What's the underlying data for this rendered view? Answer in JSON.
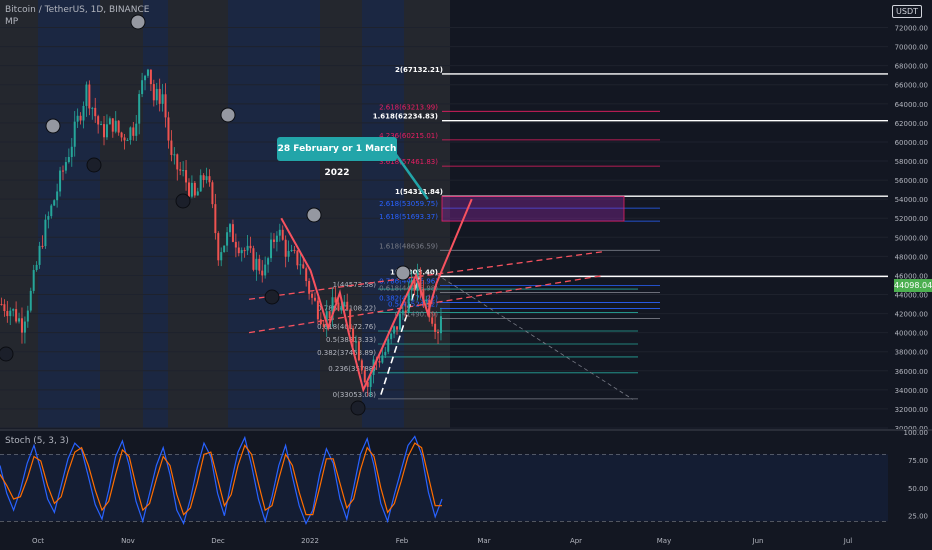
{
  "header": {
    "title": "Bitcoin / TetherUS, 1D, BINANCE",
    "subtitle": "MP",
    "currency": "USDT"
  },
  "callout": "28 February or 1 March 2022",
  "last_price": "44098.04",
  "colors": {
    "background": "#131722",
    "candle_up": "#26a69a",
    "candle_down": "#ef5350",
    "wave": "#f7525f",
    "stoch_k": "#2962ff",
    "stoch_d": "#ff6d00",
    "fib_up": "#2962ff",
    "fib_down": "#e91e63"
  },
  "chart_data": [
    {
      "type": "line",
      "name_label": "Bitcoin / TetherUS, 1D, BINANCE",
      "x_ticks": [
        "Oct",
        "Nov",
        "Dec",
        "2022",
        "Feb",
        "Mar",
        "Apr",
        "May",
        "Jun",
        "Jul"
      ],
      "y_ticks": [
        "30000.00",
        "32000.00",
        "34000.00",
        "36000.00",
        "38000.00",
        "40000.00",
        "42000.00",
        "44000.00",
        "46000.00",
        "48000.00",
        "50000.00",
        "52000.00",
        "54000.00",
        "56000.00",
        "58000.00",
        "60000.00",
        "62000.00",
        "64000.00",
        "66000.00",
        "68000.00",
        "70000.00",
        "72000.00"
      ],
      "ylim": [
        30000,
        73000
      ],
      "price_path": [
        [
          "Sep 21",
          43000
        ],
        [
          "Sep 24",
          42500
        ],
        [
          "Sep 28",
          41000
        ],
        [
          "Oct 1",
          44000
        ],
        [
          "Oct 5",
          50000
        ],
        [
          "Oct 10",
          55000
        ],
        [
          "Oct 15",
          60000
        ],
        [
          "Oct 20",
          65500
        ],
        [
          "Oct 25",
          61000
        ],
        [
          "Oct 29",
          62000
        ],
        [
          "Nov 1",
          60500
        ],
        [
          "Nov 5",
          61500
        ],
        [
          "Nov 8",
          66000
        ],
        [
          "Nov 10",
          68500
        ],
        [
          "Nov 12",
          64500
        ],
        [
          "Nov 15",
          65000
        ],
        [
          "Nov 18",
          58000
        ],
        [
          "Nov 22",
          56500
        ],
        [
          "Nov 26",
          54000
        ],
        [
          "Nov 30",
          57000
        ],
        [
          "Dec 4",
          48500
        ],
        [
          "Dec 8",
          50500
        ],
        [
          "Dec 12",
          49000
        ],
        [
          "Dec 16",
          47500
        ],
        [
          "Dec 20",
          46500
        ],
        [
          "Dec 24",
          51000
        ],
        [
          "Dec 28",
          48000
        ],
        [
          "Jan 1",
          47500
        ],
        [
          "Jan 5",
          43500
        ],
        [
          "Jan 9",
          41500
        ],
        [
          "Jan 13",
          43000
        ],
        [
          "Jan 17",
          42000
        ],
        [
          "Jan 21",
          38000
        ],
        [
          "Jan 24",
          34500
        ],
        [
          "Jan 26",
          36800
        ],
        [
          "Jan 30",
          38000
        ],
        [
          "Feb 4",
          41500
        ],
        [
          "Feb 7",
          44000
        ],
        [
          "Feb 10",
          45500
        ],
        [
          "Feb 14",
          42500
        ],
        [
          "Feb 17",
          40500
        ],
        [
          "Feb 19",
          44100
        ]
      ],
      "wave_path": [
        [
          "Dec 26",
          52000
        ],
        [
          "Jan 5",
          46500
        ],
        [
          "Jan 11",
          40500
        ],
        [
          "Jan 15",
          44200
        ],
        [
          "Jan 18",
          40000
        ],
        [
          "Jan 23",
          34000
        ],
        [
          "Feb 3",
          41500
        ],
        [
          "Feb 10",
          46000
        ],
        [
          "Feb 14",
          42000
        ],
        [
          "Feb 17",
          45200
        ],
        [
          "Mar 1",
          54000
        ]
      ],
      "channel_lines": [
        {
          "from": [
            "Dec 15",
            40000
          ],
          "to": [
            "Apr 15",
            46000
          ]
        },
        {
          "from": [
            "Dec 15",
            43500
          ],
          "to": [
            "Apr 15",
            48500
          ]
        }
      ],
      "fib_down": [
        {
          "label": "0(33053.08)",
          "price": 33053
        },
        {
          "label": "0.236(35788)",
          "price": 35788
        },
        {
          "label": "0.382(37453.89)",
          "price": 37454
        },
        {
          "label": "0.5(38813.33)",
          "price": 38813
        },
        {
          "label": "0.618(40172.76)",
          "price": 40173
        },
        {
          "label": "0.786(42108.22)",
          "price": 42108
        },
        {
          "label": "1(44573.58)",
          "price": 44574
        }
      ],
      "fib_up": [
        {
          "label": "0(41490.79)",
          "price": 41491
        },
        {
          "label": "0.5(42524.52)",
          "price": 42525
        },
        {
          "label": "0.382(43170.22)",
          "price": 43170
        },
        {
          "label": "0.618(44215.98)",
          "price": 44216
        },
        {
          "label": "0.786(44956.96)",
          "price": 44957
        },
        {
          "label": "1(45903.40)",
          "price": 45903
        },
        {
          "label": "1.618(48636.59)",
          "price": 48637
        },
        {
          "label": "1.618(51693.37)",
          "price": 51693
        },
        {
          "label": "2.618(53059.75)",
          "price": 53060
        },
        {
          "label": "1(54311.84)",
          "price": 54312
        },
        {
          "label": "3.618(57461.83)",
          "price": 57462
        },
        {
          "label": "4.236(60215.01)",
          "price": 60215
        },
        {
          "label": "1.618(62234.83)",
          "price": 62235
        },
        {
          "label": "2.618(63213.99)",
          "price": 63214
        },
        {
          "label": "2(67132.21)",
          "price": 67132
        }
      ]
    },
    {
      "type": "line",
      "title": "Stoch (5, 3, 3)",
      "y_ticks": [
        "25.00",
        "50.00",
        "75.00",
        "100.00"
      ],
      "ylim": [
        14,
        100
      ],
      "series": [
        {
          "key": "k",
          "values": [
            70,
            45,
            30,
            48,
            72,
            88,
            66,
            40,
            28,
            52,
            76,
            90,
            84,
            60,
            35,
            22,
            48,
            78,
            92,
            70,
            38,
            20,
            45,
            70,
            86,
            62,
            30,
            18,
            40,
            68,
            90,
            78,
            45,
            25,
            55,
            82,
            95,
            70,
            40,
            20,
            42,
            70,
            88,
            60,
            34,
            18,
            30,
            62,
            85,
            72,
            40,
            22,
            50,
            80,
            94,
            70,
            36,
            20,
            44,
            66,
            88,
            96,
            80,
            46,
            24,
            40
          ]
        },
        {
          "key": "d",
          "values": [
            62,
            52,
            40,
            42,
            58,
            78,
            74,
            52,
            36,
            42,
            64,
            82,
            86,
            70,
            48,
            30,
            38,
            62,
            84,
            78,
            52,
            30,
            36,
            58,
            78,
            70,
            44,
            26,
            32,
            54,
            80,
            82,
            58,
            34,
            44,
            70,
            88,
            80,
            54,
            30,
            34,
            58,
            80,
            70,
            46,
            26,
            26,
            50,
            76,
            76,
            54,
            32,
            40,
            66,
            86,
            78,
            50,
            28,
            36,
            56,
            78,
            90,
            86,
            60,
            34,
            34
          ]
        }
      ]
    }
  ]
}
